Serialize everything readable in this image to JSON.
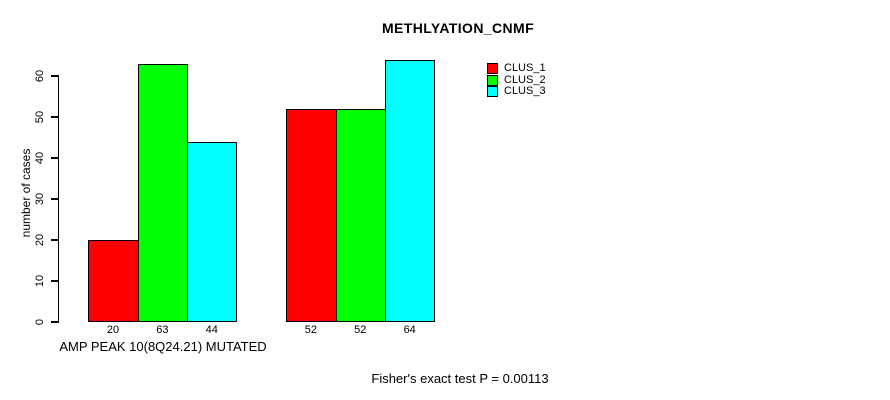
{
  "chart_data": {
    "type": "bar",
    "title": "METHLYATION_CNMF",
    "ylabel": "number of cases",
    "xlabel": "AMP PEAK 10(8Q24.21) MUTATED",
    "footnote": "Fisher's exact test P = 0.00113",
    "categories": [
      "AMP PEAK 10(8Q24.21) MUTATED",
      ""
    ],
    "series": [
      {
        "name": "CLUS_1",
        "color": "#ff0000",
        "values": [
          20,
          52
        ]
      },
      {
        "name": "CLUS_2",
        "color": "#00ff00",
        "values": [
          63,
          52
        ]
      },
      {
        "name": "CLUS_3",
        "color": "#00ffff",
        "values": [
          44,
          64
        ]
      }
    ],
    "bar_value_labels": [
      [
        "20",
        "63",
        "44"
      ],
      [
        "52",
        "52",
        "64"
      ]
    ],
    "yticks": [
      0,
      10,
      20,
      30,
      40,
      50,
      60
    ],
    "ylim": [
      0,
      66
    ],
    "grid": false,
    "legend_position": "top-right",
    "bar_border_color": "#000000",
    "background_color": "#ffffff"
  }
}
